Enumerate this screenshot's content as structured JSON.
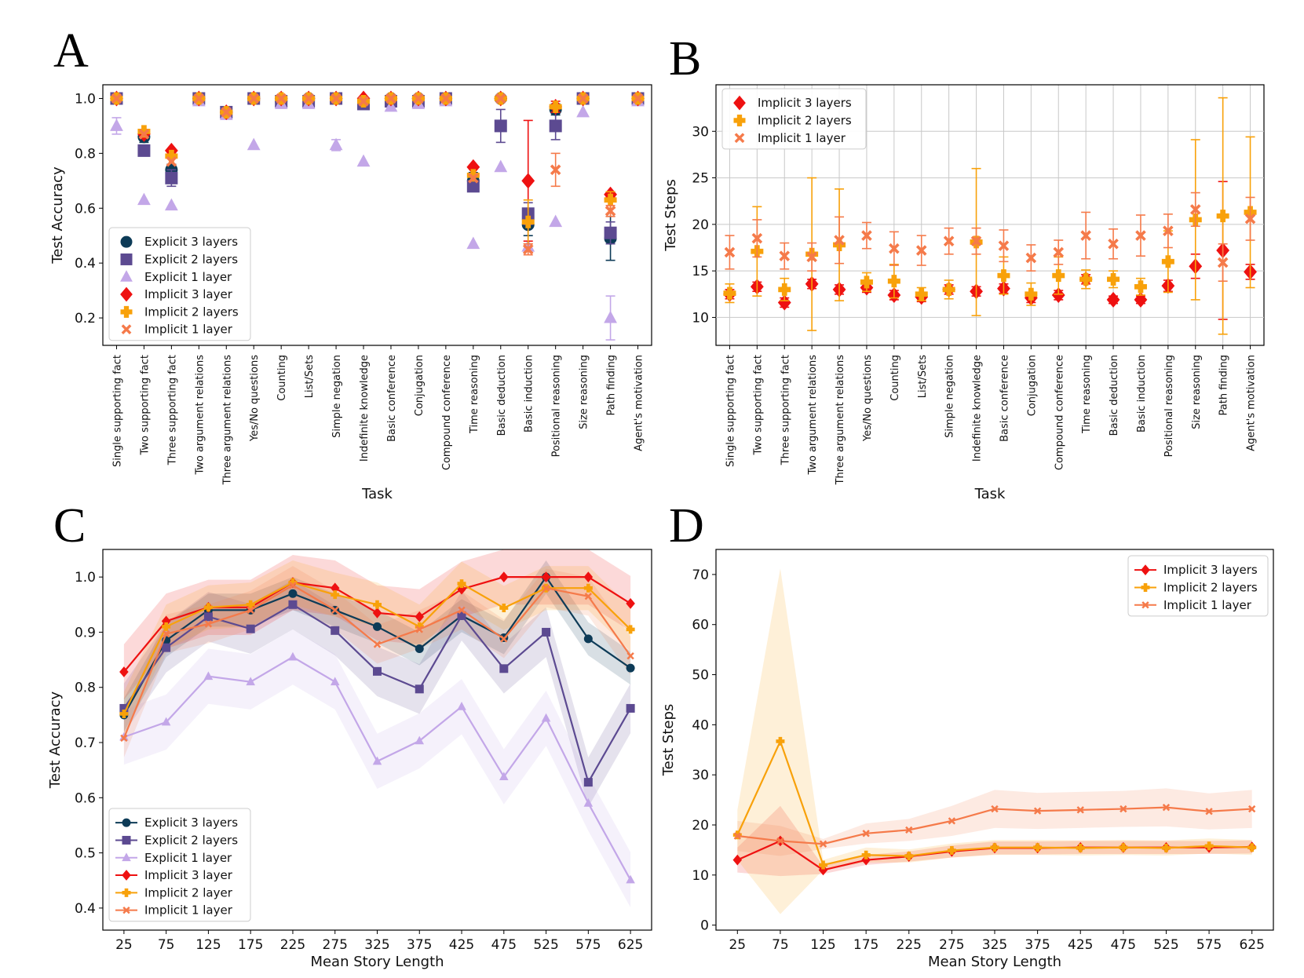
{
  "panels": {
    "A": {
      "label": "A"
    },
    "B": {
      "label": "B"
    },
    "C": {
      "label": "C"
    },
    "D": {
      "label": "D"
    }
  },
  "colors": {
    "explicit3": "#0d3b57",
    "explicit2": "#5c4a91",
    "explicit1": "#c3a7e8",
    "implicit3": "#ee1111",
    "implicit2": "#f8a10a",
    "implicit1": "#f57a4a"
  },
  "chart_data": [
    {
      "id": "A",
      "type": "scatter",
      "title": "",
      "xlabel": "Task",
      "ylabel": "Test Accuracy",
      "ylim": [
        0.1,
        1.05
      ],
      "yticks": [
        0.2,
        0.4,
        0.6,
        0.8,
        1.0
      ],
      "ytick_labels": [
        "0.2",
        "0.4",
        "0.6",
        "0.8",
        "1.0"
      ],
      "grid": false,
      "legend": "lower-left",
      "categories": [
        "Single supporting fact",
        "Two supporting fact",
        "Three supporting fact",
        "Two argument relations",
        "Three argument relations",
        "Yes/No questions",
        "Counting",
        "List/Sets",
        "Simple negation",
        "Indefinite knowledge",
        "Basic conference",
        "Conjugation",
        "Compound conference",
        "Time reasoning",
        "Basic deduction",
        "Basic induction",
        "Positional reasoning",
        "Size reasoning",
        "Path finding",
        "Agent's motivation"
      ],
      "series": [
        {
          "name": "Explicit 3 layers",
          "key": "explicit3",
          "marker": "circle",
          "values": [
            1.0,
            0.86,
            0.74,
            1.0,
            0.95,
            1.0,
            0.99,
            1.0,
            1.0,
            0.99,
            1.0,
            1.0,
            1.0,
            0.7,
            1.0,
            0.54,
            0.96,
            1.0,
            0.49,
            1.0
          ],
          "err": [
            0.01,
            0.02,
            0.02,
            0,
            0,
            0,
            0,
            0,
            0,
            0,
            0,
            0,
            0,
            0.03,
            0,
            0.04,
            0.02,
            0,
            0.08,
            0
          ]
        },
        {
          "name": "Explicit 2 layers",
          "key": "explicit2",
          "marker": "square",
          "values": [
            1.0,
            0.81,
            0.71,
            1.0,
            0.95,
            1.0,
            0.99,
            0.99,
            1.0,
            0.98,
            0.99,
            0.99,
            1.0,
            0.68,
            0.9,
            0.58,
            0.9,
            1.0,
            0.51,
            1.0
          ],
          "err": [
            0,
            0,
            0.03,
            0,
            0,
            0,
            0,
            0,
            0,
            0,
            0,
            0,
            0,
            0.01,
            0.06,
            0.04,
            0.05,
            0,
            0.04,
            0
          ]
        },
        {
          "name": "Explicit 1 layer",
          "key": "explicit1",
          "marker": "triangle",
          "values": [
            0.9,
            0.63,
            0.61,
            0.99,
            0.94,
            0.83,
            0.98,
            0.98,
            0.83,
            0.77,
            0.97,
            0.98,
            0.99,
            0.47,
            0.75,
            0.46,
            0.55,
            0.95,
            0.2,
            0.99
          ],
          "err": [
            0.03,
            0,
            0,
            0,
            0,
            0,
            0,
            0,
            0.02,
            0,
            0,
            0,
            0,
            0,
            0,
            0,
            0,
            0,
            0.08,
            0
          ]
        },
        {
          "name": "Implicit 3 layer",
          "key": "implicit3",
          "marker": "diamond",
          "values": [
            1.0,
            0.87,
            0.81,
            1.0,
            0.95,
            1.0,
            1.0,
            1.0,
            1.0,
            1.0,
            1.0,
            1.0,
            1.0,
            0.75,
            1.0,
            0.7,
            0.97,
            1.0,
            0.65,
            1.0
          ],
          "err": [
            0,
            0,
            0,
            0,
            0,
            0,
            0,
            0,
            0,
            0,
            0,
            0,
            0,
            0,
            0,
            0.22,
            0.02,
            0,
            0.01,
            0
          ]
        },
        {
          "name": "Implicit 2 layers",
          "key": "implicit2",
          "marker": "plus",
          "values": [
            1.0,
            0.88,
            0.79,
            1.0,
            0.95,
            1.0,
            1.0,
            1.0,
            1.0,
            0.99,
            1.0,
            1.0,
            1.0,
            0.72,
            1.0,
            0.55,
            0.97,
            1.0,
            0.63,
            1.0
          ],
          "err": [
            0,
            0,
            0,
            0,
            0,
            0,
            0,
            0,
            0,
            0,
            0,
            0,
            0,
            0,
            0,
            0.08,
            0,
            0,
            0.03,
            0
          ]
        },
        {
          "name": "Implicit 1 layer",
          "key": "implicit1",
          "marker": "x",
          "values": [
            1.0,
            0.87,
            0.77,
            1.0,
            0.95,
            1.0,
            1.0,
            1.0,
            1.0,
            0.99,
            1.0,
            1.0,
            1.0,
            0.71,
            1.0,
            0.45,
            0.74,
            1.0,
            0.59,
            1.0
          ],
          "err": [
            0,
            0,
            0,
            0,
            0,
            0,
            0,
            0,
            0,
            0,
            0,
            0,
            0,
            0,
            0,
            0.02,
            0.06,
            0,
            0.02,
            0
          ]
        }
      ]
    },
    {
      "id": "B",
      "type": "scatter",
      "title": "",
      "xlabel": "Task",
      "ylabel": "Test Steps",
      "ylim": [
        7,
        35
      ],
      "yticks": [
        10,
        15,
        20,
        25,
        30
      ],
      "ytick_labels": [
        "10",
        "15",
        "20",
        "25",
        "30"
      ],
      "grid": true,
      "legend": "upper-left",
      "categories": [
        "Single supporting fact",
        "Two supporting fact",
        "Three supporting fact",
        "Two argument relations",
        "Three argument relations",
        "Yes/No questions",
        "Counting",
        "List/Sets",
        "Simple negation",
        "Indefinite knowledge",
        "Basic conference",
        "Conjugation",
        "Compound conference",
        "Time reasoning",
        "Basic deduction",
        "Basic induction",
        "Positional reasoning",
        "Size reasoning",
        "Path finding",
        "Agent's motivation"
      ],
      "series": [
        {
          "name": "Implicit 3 layers",
          "key": "implicit3",
          "marker": "diamond",
          "values": [
            12.5,
            13.3,
            11.6,
            13.6,
            13.0,
            13.2,
            12.4,
            12.2,
            13.0,
            12.8,
            13.1,
            12.1,
            12.4,
            14.1,
            11.9,
            11.9,
            13.4,
            15.5,
            17.2,
            14.9
          ],
          "err": [
            0.5,
            0.5,
            0.5,
            0.5,
            0.5,
            0.5,
            0.5,
            0.5,
            0.5,
            0.5,
            0.5,
            0.5,
            0.5,
            0.5,
            0.4,
            0.4,
            0.6,
            1.3,
            7.4,
            0.8
          ]
        },
        {
          "name": "Implicit 2 layers",
          "key": "implicit2",
          "marker": "plus",
          "values": [
            12.6,
            17.1,
            13.0,
            16.8,
            17.8,
            13.8,
            13.9,
            12.5,
            13.0,
            18.1,
            14.5,
            12.5,
            14.5,
            14.1,
            14.1,
            13.3,
            16.0,
            20.5,
            20.9,
            21.3
          ],
          "err": [
            1.0,
            4.8,
            1.2,
            8.2,
            6.0,
            1.0,
            1.8,
            0.7,
            1.0,
            7.9,
            2.0,
            1.2,
            2.0,
            1.0,
            0.9,
            0.9,
            3.3,
            8.6,
            12.7,
            8.1
          ]
        },
        {
          "name": "Implicit 1 layer",
          "key": "implicit1",
          "marker": "x",
          "values": [
            17.0,
            18.5,
            16.6,
            16.5,
            18.3,
            18.8,
            17.4,
            17.2,
            18.2,
            18.2,
            17.7,
            16.4,
            17.0,
            18.8,
            17.9,
            18.8,
            19.3,
            21.6,
            15.9,
            20.6
          ],
          "err": [
            1.8,
            2.0,
            1.4,
            1.5,
            2.5,
            1.4,
            1.8,
            1.6,
            1.4,
            1.4,
            1.7,
            1.4,
            1.3,
            2.5,
            1.6,
            2.2,
            1.8,
            1.8,
            2.0,
            2.3
          ]
        }
      ]
    },
    {
      "id": "C",
      "type": "line",
      "title": "",
      "xlabel": "Mean Story Length",
      "ylabel": "Test Accuracy",
      "ylim": [
        0.36,
        1.05
      ],
      "yticks": [
        0.4,
        0.5,
        0.6,
        0.7,
        0.8,
        0.9,
        1.0
      ],
      "ytick_labels": [
        "0.4",
        "0.5",
        "0.6",
        "0.7",
        "0.8",
        "0.9",
        "1.0"
      ],
      "legend": "lower-left",
      "x": [
        25,
        75,
        125,
        175,
        225,
        275,
        325,
        375,
        425,
        475,
        525,
        575,
        625
      ],
      "series": [
        {
          "name": "Explicit 3 layers",
          "key": "explicit3",
          "marker": "circle",
          "values": [
            0.75,
            0.885,
            0.94,
            0.94,
            0.97,
            0.94,
            0.91,
            0.87,
            0.93,
            0.89,
            1.0,
            0.888,
            0.835
          ],
          "band": 0.03
        },
        {
          "name": "Explicit 2 layers",
          "key": "explicit2",
          "marker": "square",
          "values": [
            0.762,
            0.872,
            0.928,
            0.906,
            0.95,
            0.903,
            0.829,
            0.797,
            0.93,
            0.834,
            0.9,
            0.628,
            0.762
          ],
          "band": 0.045
        },
        {
          "name": "Explicit 1 layer",
          "key": "explicit1",
          "marker": "triangle",
          "values": [
            0.71,
            0.737,
            0.82,
            0.81,
            0.855,
            0.81,
            0.666,
            0.703,
            0.765,
            0.638,
            0.744,
            0.59,
            0.451
          ],
          "band": 0.05
        },
        {
          "name": "Implicit 3 layer",
          "key": "implicit3",
          "marker": "diamond",
          "values": [
            0.828,
            0.92,
            0.945,
            0.945,
            0.99,
            0.98,
            0.935,
            0.928,
            0.978,
            1.0,
            1.0,
            1.0,
            0.952
          ],
          "band": 0.05
        },
        {
          "name": "Implicit 2 layer",
          "key": "implicit2",
          "marker": "plus",
          "values": [
            0.752,
            0.91,
            0.945,
            0.95,
            0.99,
            0.968,
            0.95,
            0.91,
            0.988,
            0.944,
            0.98,
            0.98,
            0.905
          ],
          "band": 0.04
        },
        {
          "name": "Implicit 1 layer",
          "key": "implicit1",
          "marker": "x",
          "values": [
            0.708,
            0.897,
            0.915,
            0.94,
            0.985,
            0.94,
            0.878,
            0.905,
            0.94,
            0.888,
            0.98,
            0.965,
            0.857
          ],
          "band": 0.035
        }
      ]
    },
    {
      "id": "D",
      "type": "line",
      "title": "",
      "xlabel": "Mean Story Length",
      "ylabel": "Test Steps",
      "ylim": [
        -1,
        75
      ],
      "yticks": [
        0,
        10,
        20,
        30,
        40,
        50,
        60,
        70
      ],
      "ytick_labels": [
        "0",
        "10",
        "20",
        "30",
        "40",
        "50",
        "60",
        "70"
      ],
      "legend": "upper-right",
      "x": [
        25,
        75,
        125,
        175,
        225,
        275,
        325,
        375,
        425,
        475,
        525,
        575,
        625
      ],
      "series": [
        {
          "name": "Implicit 3 layers",
          "key": "implicit3",
          "marker": "diamond",
          "values": [
            13.0,
            16.8,
            11.0,
            13.0,
            13.7,
            14.7,
            15.4,
            15.4,
            15.5,
            15.5,
            15.5,
            15.5,
            15.6
          ],
          "band": [
            2.5,
            7.0,
            0.8,
            1.0,
            1.0,
            1.2,
            1.3,
            1.3,
            1.3,
            1.3,
            1.3,
            1.3,
            1.3
          ]
        },
        {
          "name": "Implicit 2 layers",
          "key": "implicit2",
          "marker": "plus",
          "values": [
            18.0,
            36.7,
            12.0,
            14.0,
            13.8,
            14.9,
            15.5,
            15.5,
            15.4,
            15.5,
            15.4,
            15.8,
            15.5
          ],
          "band": [
            5.0,
            34.5,
            1.0,
            1.5,
            1.3,
            1.4,
            1.5,
            1.5,
            1.5,
            1.5,
            1.5,
            1.5,
            1.5
          ]
        },
        {
          "name": "Implicit 1 layer",
          "key": "implicit1",
          "marker": "x",
          "values": [
            17.8,
            16.8,
            16.2,
            18.3,
            19.0,
            20.8,
            23.2,
            22.8,
            23.0,
            23.2,
            23.5,
            22.7,
            23.2
          ],
          "band": [
            3.0,
            3.0,
            1.0,
            2.0,
            2.2,
            3.0,
            3.8,
            3.6,
            3.6,
            3.6,
            3.8,
            3.6,
            3.8
          ]
        }
      ]
    }
  ]
}
